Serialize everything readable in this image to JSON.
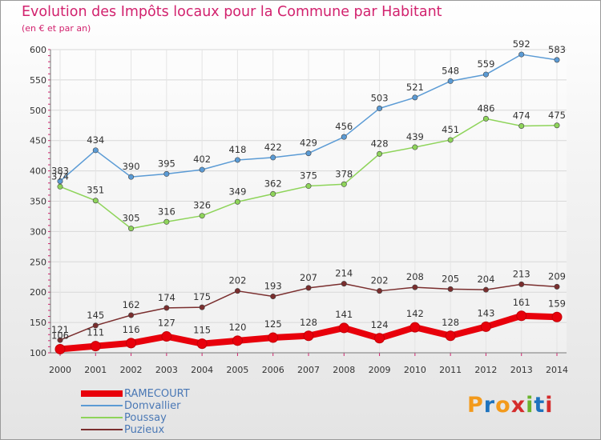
{
  "header": {
    "title": "Evolution des Impôts locaux pour la Commune par Habitant",
    "subtitle": "(en € et par an)"
  },
  "logo": {
    "text": "Proxiti",
    "colors": [
      "#f39a1c",
      "#1e73be",
      "#f39a1c",
      "#d42c2c",
      "#6ab42d",
      "#1e73be",
      "#d42c2c"
    ]
  },
  "chart_data": {
    "type": "line",
    "title": "Evolution des Impôts locaux pour la Commune par Habitant",
    "subtitle": "(en € et par an)",
    "x": [
      2000,
      2001,
      2002,
      2003,
      2004,
      2005,
      2006,
      2007,
      2008,
      2009,
      2010,
      2011,
      2012,
      2013,
      2014
    ],
    "ylim": [
      100,
      600
    ],
    "yticks": [
      100,
      150,
      200,
      250,
      300,
      350,
      400,
      450,
      500,
      550,
      600
    ],
    "grid": true,
    "legend_position": "bottom-left",
    "series": [
      {
        "name": "RAMECOURT",
        "color": "#e8000b",
        "values": [
          106,
          111,
          116,
          127,
          115,
          120,
          125,
          128,
          141,
          124,
          142,
          128,
          143,
          161,
          159
        ]
      },
      {
        "name": "Domvallier",
        "color": "#5b9bd5",
        "values": [
          383,
          434,
          390,
          395,
          402,
          418,
          422,
          429,
          456,
          503,
          521,
          548,
          559,
          592,
          583
        ]
      },
      {
        "name": "Poussay",
        "color": "#8ed45a",
        "values": [
          374,
          351,
          305,
          316,
          326,
          349,
          362,
          375,
          378,
          428,
          439,
          451,
          486,
          474,
          475
        ]
      },
      {
        "name": "Puzieux",
        "color": "#7a2e2e",
        "values": [
          121,
          145,
          162,
          174,
          175,
          202,
          193,
          207,
          214,
          202,
          208,
          205,
          204,
          213,
          209
        ]
      }
    ]
  }
}
